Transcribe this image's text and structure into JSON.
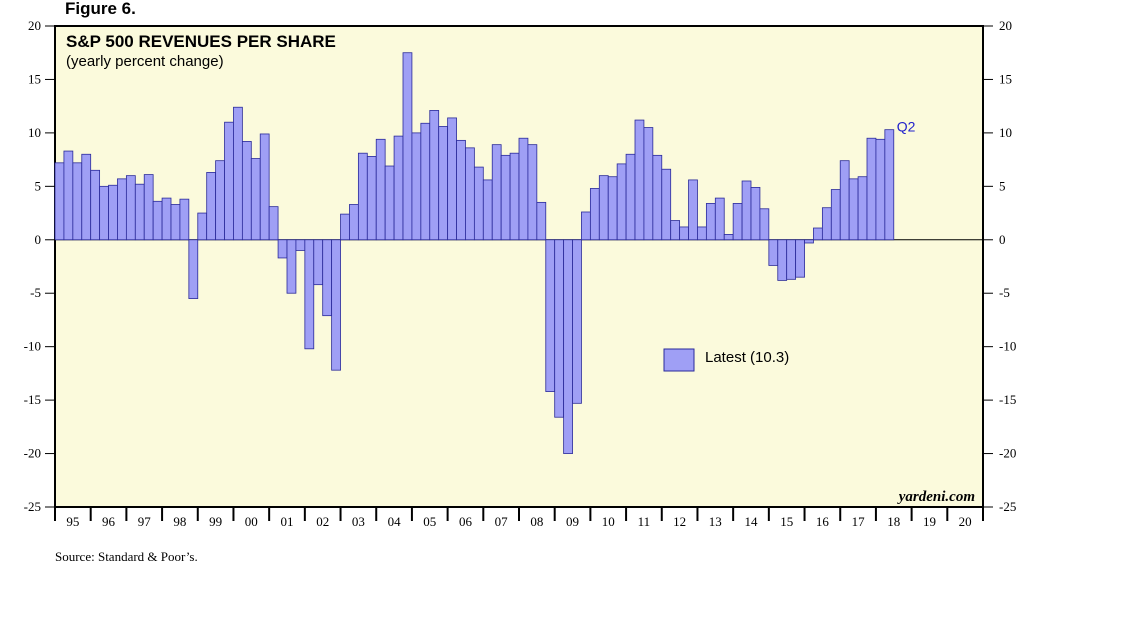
{
  "figure_label": "Figure 6.",
  "source": "Source: Standard & Poor’s.",
  "watermark": "yardeni.com",
  "colors": {
    "bar_fill": "#9f9ff5",
    "bar_stroke": "#2a2a9a",
    "plot_bg": "#fbfadc",
    "latest_label": "#2222cc"
  },
  "chart_data": {
    "type": "bar",
    "title": "S&P 500 REVENUES PER SHARE",
    "subtitle": "(yearly percent change)",
    "ylim": [
      -25,
      20
    ],
    "yticks": [
      -25,
      -20,
      -15,
      -10,
      -5,
      0,
      5,
      10,
      15,
      20
    ],
    "ytick_labels": [
      "-25",
      "-20",
      "-15",
      "-10",
      "-5",
      "0",
      "5",
      "10",
      "15",
      "20"
    ],
    "x_start": 1995,
    "x_end": 2021,
    "x_tick_labels": [
      "95",
      "96",
      "97",
      "98",
      "99",
      "00",
      "01",
      "02",
      "03",
      "04",
      "05",
      "06",
      "07",
      "08",
      "09",
      "10",
      "11",
      "12",
      "13",
      "14",
      "15",
      "16",
      "17",
      "18",
      "19",
      "20"
    ],
    "grid": false,
    "legend": {
      "label": "Latest (10.3)",
      "placement": "center-right"
    },
    "latest_label": "Q2",
    "series": [
      {
        "frequency": "quarterly",
        "first_period": "1995 Q1",
        "values": [
          7.2,
          8.3,
          7.2,
          8.0,
          6.5,
          5.0,
          5.1,
          5.7,
          6.0,
          5.2,
          6.1,
          3.6,
          3.9,
          3.3,
          3.8,
          -5.5,
          2.5,
          6.3,
          7.4,
          11.0,
          12.4,
          9.2,
          7.6,
          9.9,
          3.1,
          -1.7,
          -5.0,
          -1.0,
          -10.2,
          -4.2,
          -7.1,
          -12.2,
          2.4,
          3.3,
          8.1,
          7.8,
          9.4,
          6.9,
          9.7,
          17.5,
          10.0,
          10.9,
          12.1,
          10.6,
          11.4,
          9.3,
          8.6,
          6.8,
          5.6,
          8.9,
          7.9,
          8.1,
          9.5,
          8.9,
          3.5,
          -14.2,
          -16.6,
          -20.0,
          -15.3,
          2.6,
          4.8,
          6.0,
          5.9,
          7.1,
          8.0,
          11.2,
          10.5,
          7.9,
          6.6,
          1.8,
          1.2,
          5.6,
          1.2,
          3.4,
          3.9,
          0.5,
          3.4,
          5.5,
          4.9,
          2.9,
          -2.4,
          -3.8,
          -3.7,
          -3.5,
          -0.3,
          1.1,
          3.0,
          4.7,
          7.4,
          5.7,
          5.9,
          9.5,
          9.4,
          10.3
        ]
      }
    ]
  }
}
